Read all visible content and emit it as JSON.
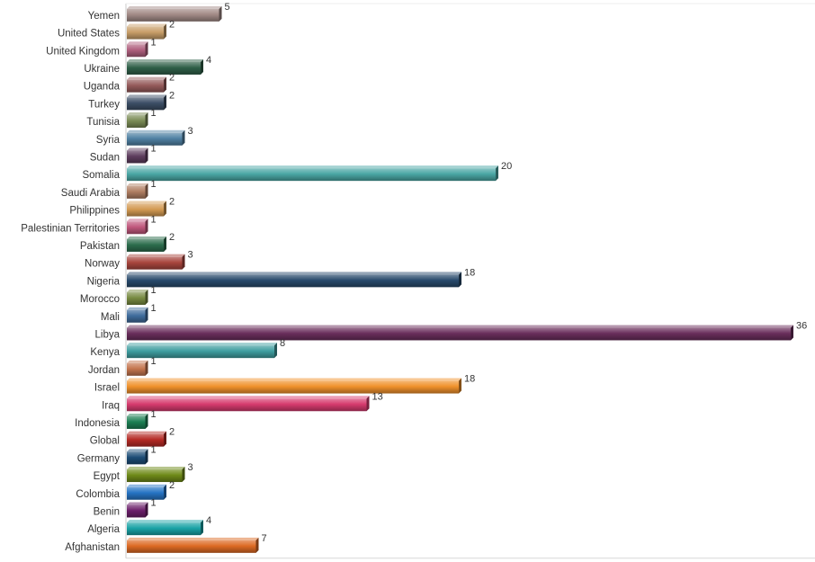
{
  "chart_data": {
    "type": "bar",
    "orientation": "horizontal",
    "title": "",
    "xlabel": "",
    "ylabel": "",
    "xlim": [
      0,
      36
    ],
    "grid": false,
    "legend": "none",
    "categories": [
      "Yemen",
      "United States",
      "United Kingdom",
      "Ukraine",
      "Uganda",
      "Turkey",
      "Tunisia",
      "Syria",
      "Sudan",
      "Somalia",
      "Saudi Arabia",
      "Philippines",
      "Palestinian Territories",
      "Pakistan",
      "Norway",
      "Nigeria",
      "Morocco",
      "Mali",
      "Libya",
      "Kenya",
      "Jordan",
      "Israel",
      "Iraq",
      "Indonesia",
      "Global",
      "Germany",
      "Egypt",
      "Colombia",
      "Benin",
      "Algeria",
      "Afghanistan"
    ],
    "values": [
      5,
      2,
      1,
      4,
      2,
      2,
      1,
      3,
      1,
      20,
      1,
      2,
      1,
      2,
      3,
      18,
      1,
      1,
      36,
      8,
      1,
      18,
      13,
      1,
      2,
      1,
      3,
      2,
      1,
      4,
      7
    ],
    "colors": [
      "#a28a86",
      "#c89e68",
      "#b0607e",
      "#2f6048",
      "#955b5b",
      "#3c4e66",
      "#7a8b55",
      "#5081a3",
      "#5e3d5e",
      "#4aa7a5",
      "#b07e62",
      "#d39a52",
      "#c0577c",
      "#2c6d4d",
      "#a8453d",
      "#284a6c",
      "#788a41",
      "#3f6c9c",
      "#6a2e5c",
      "#3f9ea0",
      "#c4754e",
      "#f0912b",
      "#d63b6e",
      "#1c7f53",
      "#b52a25",
      "#1d4c76",
      "#6f8a18",
      "#2674c4",
      "#6b1f6a",
      "#1aa3a6",
      "#dd6a24"
    ]
  }
}
